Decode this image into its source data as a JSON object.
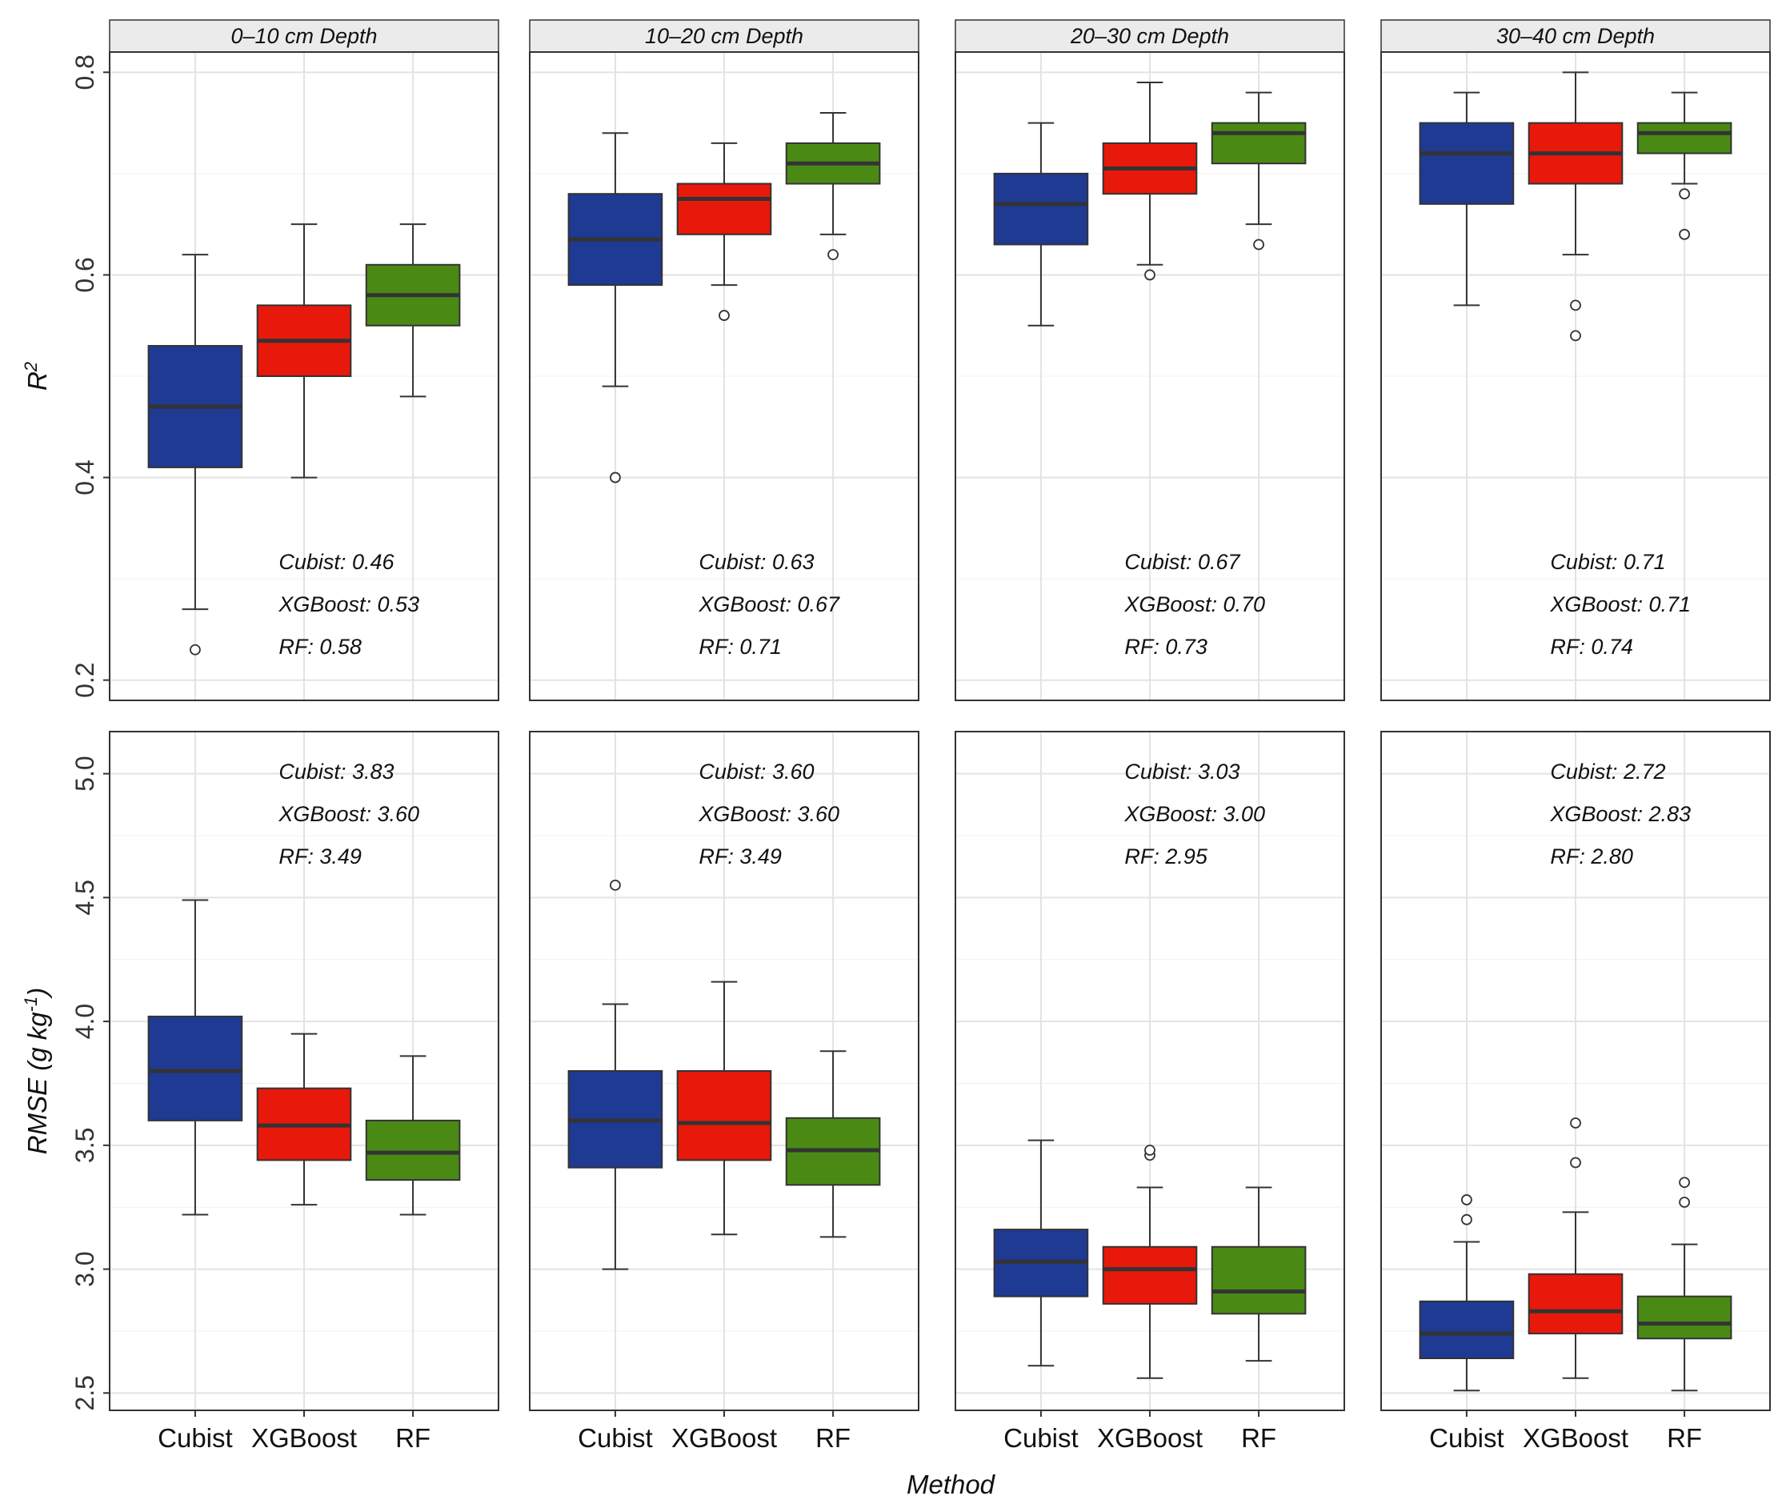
{
  "chart_data": {
    "type": "boxplot",
    "xlabel": "Method",
    "categories": [
      "Cubist",
      "XGBoost",
      "RF"
    ],
    "colors": {
      "Cubist": "#1f3a93",
      "XGBoost": "#e8180a",
      "RF": "#4a8a14"
    },
    "facets": [
      "0–10 cm Depth",
      "10–20 cm Depth",
      "20–30 cm Depth",
      "30–40 cm Depth"
    ],
    "rows": [
      {
        "metric": "R2",
        "ylabel_main": "R",
        "ylabel_sup": "2",
        "ylim": [
          0.18,
          0.82
        ],
        "yticks": [
          0.2,
          0.4,
          0.6,
          0.8
        ],
        "yticks_labels": [
          "0.2",
          "0.4",
          "0.6",
          "0.8"
        ],
        "panels": [
          {
            "boxes": [
              {
                "method": "Cubist",
                "q1": 0.41,
                "median": 0.47,
                "q3": 0.53,
                "lower": 0.27,
                "upper": 0.62,
                "outliers": [
                  0.23
                ]
              },
              {
                "method": "XGBoost",
                "q1": 0.5,
                "median": 0.535,
                "q3": 0.57,
                "lower": 0.4,
                "upper": 0.65,
                "outliers": []
              },
              {
                "method": "RF",
                "q1": 0.55,
                "median": 0.58,
                "q3": 0.61,
                "lower": 0.48,
                "upper": 0.65,
                "outliers": []
              }
            ],
            "annotations": [
              "Cubist: 0.46",
              "XGBoost: 0.53",
              "RF: 0.58"
            ]
          },
          {
            "boxes": [
              {
                "method": "Cubist",
                "q1": 0.59,
                "median": 0.635,
                "q3": 0.68,
                "lower": 0.49,
                "upper": 0.74,
                "outliers": [
                  0.4
                ]
              },
              {
                "method": "XGBoost",
                "q1": 0.64,
                "median": 0.675,
                "q3": 0.69,
                "lower": 0.59,
                "upper": 0.73,
                "outliers": [
                  0.56
                ]
              },
              {
                "method": "RF",
                "q1": 0.69,
                "median": 0.71,
                "q3": 0.73,
                "lower": 0.64,
                "upper": 0.76,
                "outliers": [
                  0.62
                ]
              }
            ],
            "annotations": [
              "Cubist: 0.63",
              "XGBoost: 0.67",
              "RF: 0.71"
            ]
          },
          {
            "boxes": [
              {
                "method": "Cubist",
                "q1": 0.63,
                "median": 0.67,
                "q3": 0.7,
                "lower": 0.55,
                "upper": 0.75,
                "outliers": []
              },
              {
                "method": "XGBoost",
                "q1": 0.68,
                "median": 0.705,
                "q3": 0.73,
                "lower": 0.61,
                "upper": 0.79,
                "outliers": [
                  0.6
                ]
              },
              {
                "method": "RF",
                "q1": 0.71,
                "median": 0.74,
                "q3": 0.75,
                "lower": 0.65,
                "upper": 0.78,
                "outliers": [
                  0.63
                ]
              }
            ],
            "annotations": [
              "Cubist: 0.67",
              "XGBoost: 0.70",
              "RF: 0.73"
            ]
          },
          {
            "boxes": [
              {
                "method": "Cubist",
                "q1": 0.67,
                "median": 0.72,
                "q3": 0.75,
                "lower": 0.57,
                "upper": 0.78,
                "outliers": []
              },
              {
                "method": "XGBoost",
                "q1": 0.69,
                "median": 0.72,
                "q3": 0.75,
                "lower": 0.62,
                "upper": 0.8,
                "outliers": [
                  0.57,
                  0.54
                ]
              },
              {
                "method": "RF",
                "q1": 0.72,
                "median": 0.74,
                "q3": 0.75,
                "lower": 0.69,
                "upper": 0.78,
                "outliers": [
                  0.68,
                  0.64
                ]
              }
            ],
            "annotations": [
              "Cubist: 0.71",
              "XGBoost: 0.71",
              "RF: 0.74"
            ]
          }
        ]
      },
      {
        "metric": "RMSE",
        "ylabel_main": "RMSE (g kg",
        "ylabel_sup": "-1",
        "ylabel_end": ")",
        "ylim": [
          2.43,
          5.17
        ],
        "yticks": [
          2.5,
          3.0,
          3.5,
          4.0,
          4.5,
          5.0
        ],
        "yticks_labels": [
          "2.5",
          "3.0",
          "3.5",
          "4.0",
          "4.5",
          "5.0"
        ],
        "panels": [
          {
            "boxes": [
              {
                "method": "Cubist",
                "q1": 3.6,
                "median": 3.8,
                "q3": 4.02,
                "lower": 3.22,
                "upper": 4.49,
                "outliers": []
              },
              {
                "method": "XGBoost",
                "q1": 3.44,
                "median": 3.58,
                "q3": 3.73,
                "lower": 3.26,
                "upper": 3.95,
                "outliers": []
              },
              {
                "method": "RF",
                "q1": 3.36,
                "median": 3.47,
                "q3": 3.6,
                "lower": 3.22,
                "upper": 3.86,
                "outliers": []
              }
            ],
            "annotations": [
              "Cubist: 3.83",
              "XGBoost: 3.60",
              "RF: 3.49"
            ]
          },
          {
            "boxes": [
              {
                "method": "Cubist",
                "q1": 3.41,
                "median": 3.6,
                "q3": 3.8,
                "lower": 3.0,
                "upper": 4.07,
                "outliers": [
                  4.55
                ]
              },
              {
                "method": "XGBoost",
                "q1": 3.44,
                "median": 3.59,
                "q3": 3.8,
                "lower": 3.14,
                "upper": 4.16,
                "outliers": []
              },
              {
                "method": "RF",
                "q1": 3.34,
                "median": 3.48,
                "q3": 3.61,
                "lower": 3.13,
                "upper": 3.88,
                "outliers": []
              }
            ],
            "annotations": [
              "Cubist: 3.60",
              "XGBoost: 3.60",
              "RF: 3.49"
            ]
          },
          {
            "boxes": [
              {
                "method": "Cubist",
                "q1": 2.89,
                "median": 3.03,
                "q3": 3.16,
                "lower": 2.61,
                "upper": 3.52,
                "outliers": []
              },
              {
                "method": "XGBoost",
                "q1": 2.86,
                "median": 3.0,
                "q3": 3.09,
                "lower": 2.56,
                "upper": 3.33,
                "outliers": [
                  3.46,
                  3.48
                ]
              },
              {
                "method": "RF",
                "q1": 2.82,
                "median": 2.91,
                "q3": 3.09,
                "lower": 2.63,
                "upper": 3.33,
                "outliers": []
              }
            ],
            "annotations": [
              "Cubist: 3.03",
              "XGBoost: 3.00",
              "RF: 2.95"
            ]
          },
          {
            "boxes": [
              {
                "method": "Cubist",
                "q1": 2.64,
                "median": 2.74,
                "q3": 2.87,
                "lower": 2.51,
                "upper": 3.11,
                "outliers": [
                  3.2,
                  3.28
                ]
              },
              {
                "method": "XGBoost",
                "q1": 2.74,
                "median": 2.83,
                "q3": 2.98,
                "lower": 2.56,
                "upper": 3.23,
                "outliers": [
                  3.43,
                  3.59
                ]
              },
              {
                "method": "RF",
                "q1": 2.72,
                "median": 2.78,
                "q3": 2.89,
                "lower": 2.51,
                "upper": 3.1,
                "outliers": [
                  3.27,
                  3.35
                ]
              }
            ],
            "annotations": [
              "Cubist: 2.72",
              "XGBoost: 2.83",
              "RF: 2.80"
            ]
          }
        ]
      }
    ]
  }
}
